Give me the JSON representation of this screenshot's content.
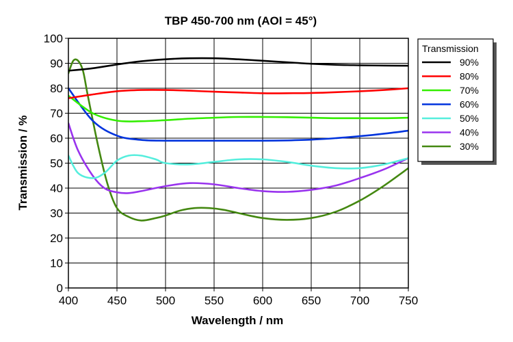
{
  "chart_data": {
    "type": "line",
    "title": "TBP 450-700 nm (AOI = 45°)",
    "xlabel": "Wavelength / nm",
    "ylabel": "Transmission / %",
    "xlim": [
      400,
      750
    ],
    "ylim": [
      0,
      100
    ],
    "x_ticks": [
      400,
      450,
      500,
      550,
      600,
      650,
      700,
      750
    ],
    "y_ticks": [
      0,
      10,
      20,
      30,
      40,
      50,
      60,
      70,
      80,
      90,
      100
    ],
    "grid": true,
    "legend": {
      "title": "Transmission",
      "position": "top-right-outside"
    },
    "series": [
      {
        "name": "90%",
        "color": "#000000",
        "x": [
          400,
          425,
          450,
          475,
          500,
          525,
          550,
          575,
          600,
          625,
          650,
          675,
          700,
          725,
          750
        ],
        "y": [
          87,
          88,
          89.5,
          90.8,
          91.6,
          92,
          92,
          91.6,
          91,
          90.4,
          89.8,
          89.4,
          89.2,
          89.1,
          89
        ]
      },
      {
        "name": "80%",
        "color": "#ff0000",
        "x": [
          400,
          425,
          450,
          475,
          500,
          525,
          550,
          575,
          600,
          625,
          650,
          675,
          700,
          725,
          750
        ],
        "y": [
          76,
          77.5,
          78.8,
          79.3,
          79.3,
          79,
          78.6,
          78.3,
          78,
          78,
          78.1,
          78.4,
          78.8,
          79.3,
          80
        ]
      },
      {
        "name": "70%",
        "color": "#33ee00",
        "x": [
          400,
          425,
          450,
          475,
          500,
          525,
          550,
          575,
          600,
          625,
          650,
          675,
          700,
          725,
          750
        ],
        "y": [
          77,
          70,
          67,
          66.8,
          67.2,
          67.8,
          68.2,
          68.5,
          68.5,
          68.4,
          68.2,
          68,
          68,
          68,
          68.2
        ]
      },
      {
        "name": "60%",
        "color": "#0033dd",
        "x": [
          400,
          425,
          450,
          475,
          500,
          525,
          550,
          575,
          600,
          625,
          650,
          675,
          700,
          725,
          750
        ],
        "y": [
          80,
          67,
          61,
          59.3,
          59,
          59,
          59,
          59,
          59,
          59.1,
          59.4,
          60,
          60.8,
          61.8,
          63
        ]
      },
      {
        "name": "50%",
        "color": "#55eedd",
        "x": [
          400,
          410,
          425,
          437,
          450,
          462,
          475,
          490,
          500,
          525,
          550,
          575,
          600,
          625,
          650,
          675,
          700,
          725,
          750
        ],
        "y": [
          53,
          46,
          44,
          46,
          51,
          53,
          53,
          51.5,
          50,
          49.5,
          50.5,
          51.5,
          51.5,
          50.5,
          49,
          48,
          48,
          49.5,
          52
        ]
      },
      {
        "name": "40%",
        "color": "#9933ee",
        "x": [
          400,
          410,
          425,
          437,
          450,
          462,
          475,
          500,
          525,
          550,
          575,
          600,
          625,
          650,
          675,
          700,
          725,
          750
        ],
        "y": [
          66,
          55,
          45,
          40,
          38.3,
          38,
          38.8,
          40.8,
          42,
          41.5,
          40,
          38.8,
          38.5,
          39.3,
          41,
          44,
          47.5,
          52
        ]
      },
      {
        "name": "30%",
        "color": "#448811",
        "x": [
          400,
          405,
          410,
          415,
          420,
          430,
          440,
          450,
          462,
          475,
          490,
          500,
          515,
          530,
          545,
          560,
          575,
          600,
          625,
          650,
          675,
          700,
          725,
          750
        ],
        "y": [
          86,
          91,
          91,
          87,
          77,
          58,
          42,
          32,
          28.5,
          27,
          28,
          29,
          31,
          32,
          32,
          31.3,
          30,
          28,
          27.3,
          28,
          30.5,
          35,
          41,
          48
        ]
      }
    ]
  }
}
